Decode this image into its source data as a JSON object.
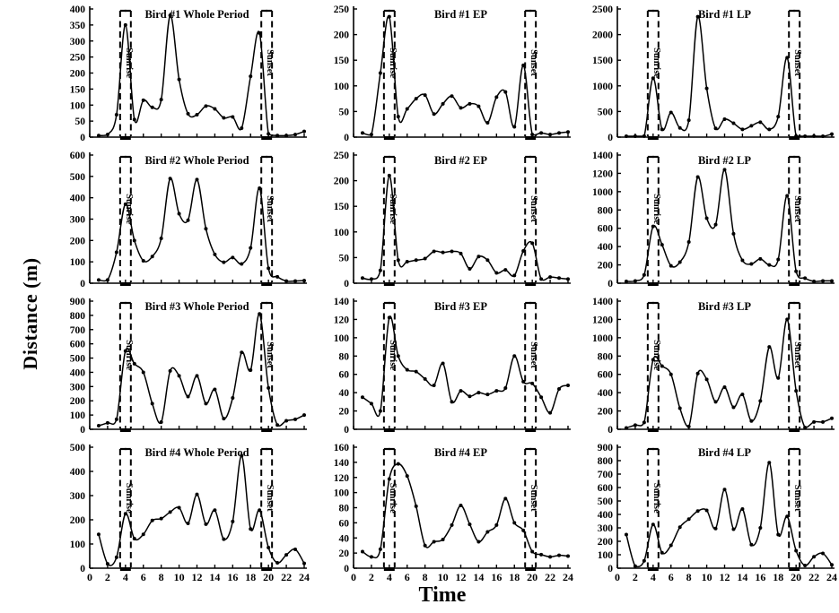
{
  "figure": {
    "ylabel": "Distance (m)",
    "xlabel": "Time",
    "band_labels": {
      "sunrise": "Sunrise",
      "sunset": "Sunset"
    },
    "line_color": "#000000",
    "background": "#ffffff",
    "hours": [
      1,
      2,
      3,
      4,
      5,
      6,
      7,
      8,
      9,
      10,
      11,
      12,
      13,
      14,
      15,
      16,
      17,
      18,
      19,
      20,
      21,
      22,
      23,
      24
    ]
  },
  "chart_data": [
    {
      "type": "line",
      "title": "Bird #1 Whole Period",
      "ylim": [
        0,
        400
      ],
      "ystep": 50,
      "xlim": [
        0,
        24
      ],
      "xstep": 2,
      "sunrise_band": [
        3.4,
        4.6
      ],
      "sunset_band": [
        19.2,
        20.4
      ],
      "values": [
        5,
        8,
        70,
        350,
        55,
        115,
        93,
        117,
        380,
        180,
        73,
        70,
        97,
        88,
        60,
        63,
        28,
        190,
        325,
        10,
        5,
        5,
        8,
        18
      ]
    },
    {
      "type": "line",
      "title": "Bird #1 EP",
      "ylim": [
        0,
        250
      ],
      "ystep": 50,
      "xlim": [
        0,
        24
      ],
      "xstep": 2,
      "sunrise_band": [
        3.4,
        4.6
      ],
      "sunset_band": [
        19.2,
        20.4
      ],
      "values": [
        8,
        5,
        125,
        235,
        40,
        55,
        75,
        82,
        45,
        65,
        80,
        57,
        65,
        60,
        28,
        78,
        88,
        20,
        140,
        5,
        8,
        5,
        8,
        10
      ]
    },
    {
      "type": "line",
      "title": "Bird #1 LP",
      "ylim": [
        0,
        2500
      ],
      "ystep": 500,
      "xlim": [
        0,
        24
      ],
      "xstep": 2,
      "sunrise_band": [
        3.4,
        4.6
      ],
      "sunset_band": [
        19.2,
        20.4
      ],
      "values": [
        10,
        10,
        20,
        1150,
        150,
        480,
        180,
        330,
        2350,
        950,
        170,
        350,
        270,
        150,
        220,
        290,
        150,
        400,
        1550,
        20,
        10,
        20,
        10,
        60
      ]
    },
    {
      "type": "line",
      "title": "Bird #2 Whole Period",
      "ylim": [
        0,
        600
      ],
      "ystep": 100,
      "xlim": [
        0,
        24
      ],
      "xstep": 2,
      "sunrise_band": [
        3.4,
        4.6
      ],
      "sunset_band": [
        19.2,
        20.4
      ],
      "values": [
        15,
        15,
        145,
        370,
        200,
        105,
        125,
        210,
        490,
        325,
        295,
        485,
        255,
        135,
        98,
        120,
        90,
        165,
        445,
        70,
        30,
        10,
        10,
        12
      ]
    },
    {
      "type": "line",
      "title": "Bird #2 EP",
      "ylim": [
        0,
        250
      ],
      "ystep": 50,
      "xlim": [
        0,
        24
      ],
      "xstep": 2,
      "sunrise_band": [
        3.4,
        4.6
      ],
      "sunset_band": [
        19.2,
        20.4
      ],
      "values": [
        10,
        8,
        25,
        210,
        45,
        42,
        45,
        48,
        62,
        60,
        62,
        58,
        28,
        52,
        45,
        20,
        26,
        15,
        63,
        78,
        8,
        12,
        10,
        8
      ]
    },
    {
      "type": "line",
      "title": "Bird #2 LP",
      "ylim": [
        0,
        1400
      ],
      "ystep": 200,
      "xlim": [
        0,
        24
      ],
      "xstep": 2,
      "sunrise_band": [
        3.4,
        4.6
      ],
      "sunset_band": [
        19.2,
        20.4
      ],
      "values": [
        20,
        25,
        90,
        620,
        420,
        190,
        230,
        450,
        1160,
        710,
        640,
        1240,
        540,
        250,
        210,
        265,
        200,
        260,
        955,
        130,
        55,
        20,
        25,
        25
      ]
    },
    {
      "type": "line",
      "title": "Bird #3 Whole Period",
      "ylim": [
        0,
        900
      ],
      "ystep": 100,
      "xlim": [
        0,
        24
      ],
      "xstep": 2,
      "sunrise_band": [
        3.4,
        4.6
      ],
      "sunset_band": [
        19.2,
        20.4
      ],
      "values": [
        25,
        45,
        70,
        550,
        460,
        400,
        180,
        50,
        410,
        375,
        230,
        375,
        180,
        280,
        75,
        220,
        540,
        415,
        810,
        290,
        30,
        60,
        70,
        100
      ]
    },
    {
      "type": "line",
      "title": "Bird #3 EP",
      "ylim": [
        0,
        140
      ],
      "ystep": 20,
      "xlim": [
        0,
        24
      ],
      "xstep": 2,
      "sunrise_band": [
        3.4,
        4.6
      ],
      "sunset_band": [
        19.2,
        20.4
      ],
      "values": [
        35,
        28,
        20,
        122,
        80,
        65,
        63,
        55,
        48,
        72,
        30,
        42,
        36,
        40,
        38,
        42,
        45,
        80,
        52,
        50,
        35,
        18,
        44,
        48
      ]
    },
    {
      "type": "line",
      "title": "Bird #3 LP",
      "ylim": [
        0,
        1400
      ],
      "ystep": 200,
      "xlim": [
        0,
        24
      ],
      "xstep": 2,
      "sunrise_band": [
        3.4,
        4.6
      ],
      "sunset_band": [
        19.2,
        20.4
      ],
      "values": [
        15,
        45,
        75,
        760,
        690,
        600,
        230,
        30,
        610,
        545,
        300,
        460,
        240,
        380,
        90,
        310,
        900,
        560,
        1200,
        420,
        20,
        80,
        80,
        120
      ]
    },
    {
      "type": "line",
      "title": "Bird #4 Whole Period",
      "ylim": [
        0,
        500
      ],
      "ystep": 100,
      "xlim": [
        0,
        24
      ],
      "xstep": 2,
      "sunrise_band": [
        3.4,
        4.6
      ],
      "sunset_band": [
        19.2,
        20.4
      ],
      "values": [
        140,
        18,
        45,
        225,
        122,
        140,
        197,
        205,
        232,
        250,
        185,
        305,
        182,
        240,
        120,
        193,
        465,
        162,
        240,
        85,
        22,
        55,
        78,
        20
      ]
    },
    {
      "type": "line",
      "title": "Bird #4 EP",
      "ylim": [
        0,
        160
      ],
      "ystep": 20,
      "xlim": [
        0,
        24
      ],
      "xstep": 2,
      "sunrise_band": [
        3.4,
        4.6
      ],
      "sunset_band": [
        19.2,
        20.4
      ],
      "values": [
        22,
        15,
        25,
        118,
        138,
        122,
        82,
        30,
        35,
        38,
        57,
        83,
        58,
        35,
        48,
        57,
        92,
        60,
        50,
        22,
        18,
        15,
        17,
        16
      ]
    },
    {
      "type": "line",
      "title": "Bird #4 LP",
      "ylim": [
        0,
        900
      ],
      "ystep": 100,
      "xlim": [
        0,
        24
      ],
      "xstep": 2,
      "sunrise_band": [
        3.4,
        4.6
      ],
      "sunset_band": [
        19.2,
        20.4
      ],
      "values": [
        250,
        15,
        55,
        325,
        115,
        170,
        305,
        365,
        425,
        430,
        295,
        585,
        290,
        440,
        175,
        300,
        785,
        250,
        385,
        130,
        20,
        85,
        110,
        25
      ]
    }
  ]
}
